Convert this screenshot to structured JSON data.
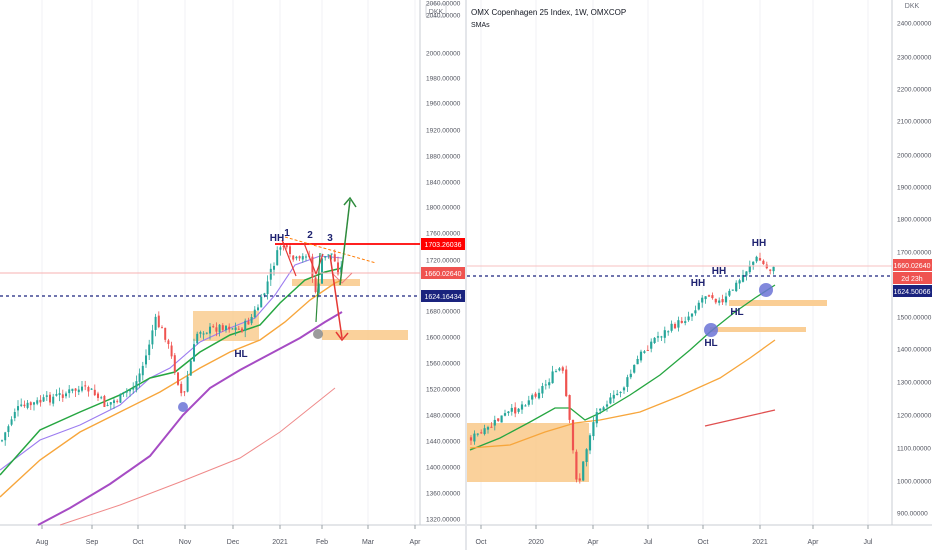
{
  "left_chart": {
    "currency": "DKK",
    "price_axis_labels": [
      "2060.00000",
      "2040.00000",
      "2000.00000",
      "1980.00000",
      "1960.00000",
      "1920.00000",
      "1880.00000",
      "1840.00000",
      "1800.00000",
      "1760.00000",
      "1720.00000",
      "1680.00000",
      "1600.00000",
      "1560.00000",
      "1520.00000",
      "1480.00000",
      "1440.00000",
      "1400.00000",
      "1360.00000",
      "1320.00000",
      "1280.00000"
    ],
    "time_axis_labels": [
      "Aug",
      "Sep",
      "Oct",
      "Nov",
      "Dec",
      "2021",
      "Feb",
      "Mar",
      "Apr"
    ],
    "price_tags": {
      "red_line": "1703.26036",
      "last_price": "1660.02640",
      "blue_line": "1624.16434"
    },
    "annotations": {
      "hh": "HH",
      "hl": "HL",
      "peak1": "1",
      "peak2": "2",
      "peak3": "3"
    },
    "colors": {
      "up": "#26a69a",
      "down": "#ef5350",
      "sma_fast": "#9c7cf0",
      "sma_mid": "#26a641",
      "sma_slow": "#f7a63c",
      "sma_long": "#a64cc4",
      "sma_longest": "#ef8a8a",
      "resistance": "#ff0000",
      "support_dotted": "#1a237e",
      "zone": "#f9c98a"
    }
  },
  "right_chart": {
    "title": "OMX Copenhagen 25 Index, 1W, OMXCOP",
    "subtitle": "SMAs",
    "currency": "DKK",
    "price_axis_labels": [
      "2400.00000",
      "2300.00000",
      "2200.00000",
      "2100.00000",
      "2000.00000",
      "1900.00000",
      "1800.00000",
      "1700.00000",
      "1500.00000",
      "1400.00000",
      "1300.00000",
      "1200.00000",
      "1100.00000",
      "1000.00000",
      "900.00000"
    ],
    "time_axis_labels": [
      "Oct",
      "2020",
      "Apr",
      "Jul",
      "Oct",
      "2021",
      "Apr",
      "Jul"
    ],
    "price_tags": {
      "last_price": "1660.02640",
      "countdown": "2d 23h",
      "blue_line": "1624.50066"
    },
    "annotations": {
      "hh": "HH",
      "hl": "HL"
    }
  },
  "chart_data": [
    {
      "type": "candlestick",
      "timeframe": "1D",
      "x_range": [
        "Jul 2020",
        "Apr 2021"
      ],
      "ylim": [
        1270,
        2065
      ],
      "horizontal_lines": [
        1703.26,
        1624.16
      ],
      "last_price": 1660.03,
      "pattern_labels": [
        "HH",
        "HL",
        "1",
        "2",
        "3"
      ]
    },
    {
      "type": "candlestick",
      "title": "OMX Copenhagen 25 Index, 1W, OMXCOP",
      "timeframe": "1W",
      "x_range": [
        "Sep 2019",
        "Sep 2021"
      ],
      "ylim": [
        880,
        2450
      ],
      "horizontal_lines": [
        1624.5
      ],
      "last_price": 1660.03,
      "pattern_labels": [
        "HH",
        "HH",
        "HH",
        "HL",
        "HL"
      ]
    }
  ]
}
